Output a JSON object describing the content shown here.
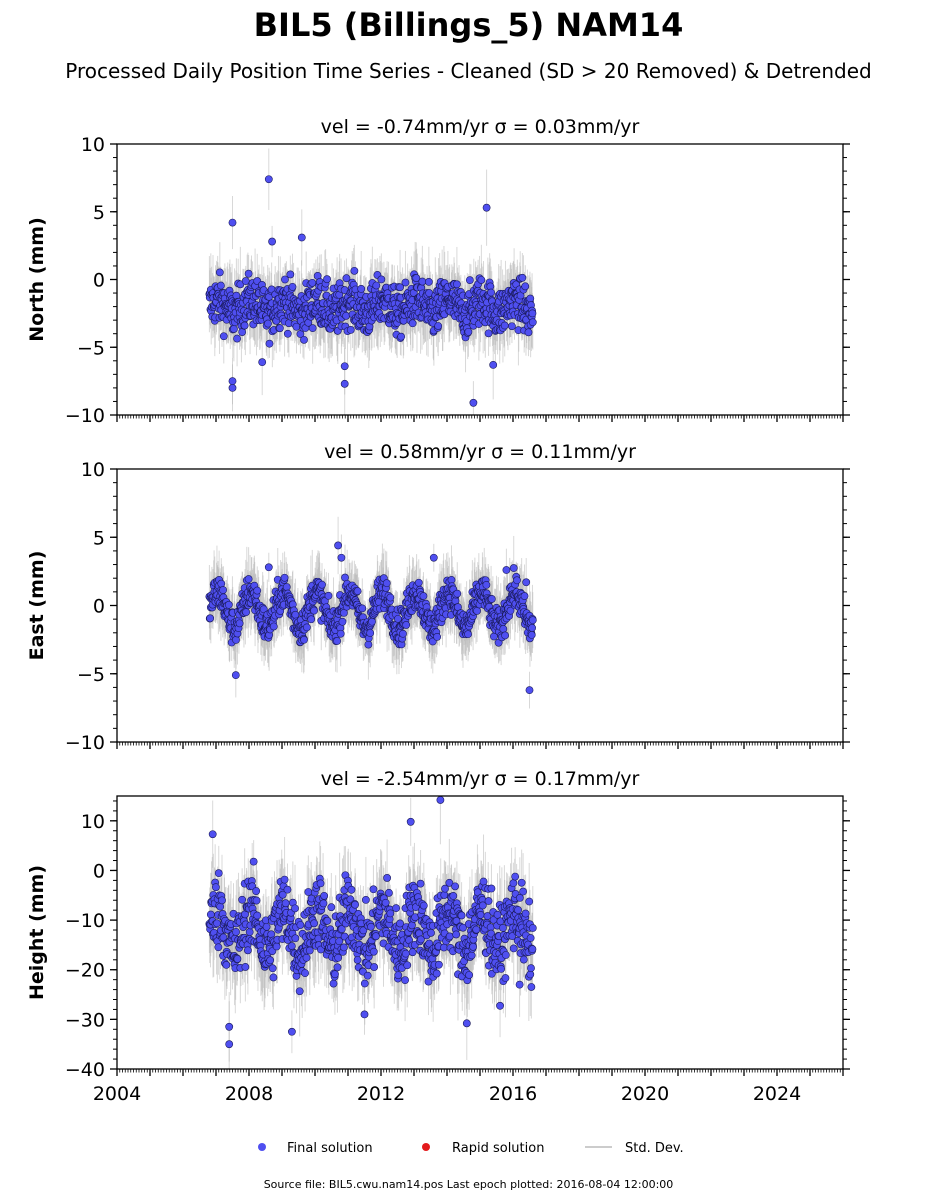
{
  "title": "BIL5 (Billings_5) NAM14",
  "subtitle": "Processed Daily Position Time Series - Cleaned (SD > 20 Removed) & Detrended",
  "footer": "Source file: BIL5.cwu.nam14.pos  Last epoch plotted: 2016-08-04 12:00:00",
  "legend": {
    "items": [
      {
        "label": "Final solution",
        "color": "#4f4ff0",
        "marker": "circle"
      },
      {
        "label": "Rapid solution",
        "color": "#e31a1c",
        "marker": "circle"
      },
      {
        "label": "Std. Dev.",
        "color": "#cccccc",
        "marker": "line"
      }
    ]
  },
  "chart_data": [
    {
      "type": "scatter",
      "panel_title": "vel = -0.74mm/yr   σ = 0.03mm/yr",
      "ylabel": "North (mm)",
      "xlim": [
        2004,
        2026
      ],
      "ylim": [
        -10,
        10
      ],
      "yticks": [
        -10,
        -5,
        0,
        5,
        10
      ],
      "x_range": [
        2006.8,
        2016.6
      ],
      "base": -2.0,
      "spread": 1.3,
      "amp": 0.5,
      "err": 1.5,
      "outliers": [
        [
          2008.6,
          7.4
        ],
        [
          2007.5,
          4.2
        ],
        [
          2015.2,
          5.3
        ],
        [
          2009.6,
          3.1
        ],
        [
          2008.7,
          2.8
        ],
        [
          2007.5,
          -8.0
        ],
        [
          2007.5,
          -7.5
        ],
        [
          2010.9,
          -7.7
        ],
        [
          2014.8,
          -9.1
        ],
        [
          2010.9,
          -6.4
        ],
        [
          2008.4,
          -6.1
        ],
        [
          2015.4,
          -6.3
        ]
      ],
      "series": [
        {
          "name": "Final solution",
          "color": "#4f4ff0"
        }
      ]
    },
    {
      "type": "scatter",
      "panel_title": "vel = 0.58mm/yr   σ = 0.11mm/yr",
      "ylabel": "East (mm)",
      "xlim": [
        2004,
        2026
      ],
      "ylim": [
        -10,
        10
      ],
      "yticks": [
        -10,
        -5,
        0,
        5,
        10
      ],
      "x_range": [
        2006.8,
        2016.6
      ],
      "base": -0.3,
      "spread": 0.9,
      "amp": 1.3,
      "err": 1.4,
      "outliers": [
        [
          2010.7,
          4.4
        ],
        [
          2010.8,
          3.5
        ],
        [
          2013.6,
          3.5
        ],
        [
          2007.6,
          -5.1
        ],
        [
          2016.5,
          -6.2
        ],
        [
          2016.4,
          1.7
        ],
        [
          2015.8,
          2.6
        ],
        [
          2008.6,
          2.8
        ]
      ],
      "series": [
        {
          "name": "Final solution",
          "color": "#4f4ff0"
        }
      ]
    },
    {
      "type": "scatter",
      "panel_title": "vel = -2.54mm/yr   σ = 0.17mm/yr",
      "ylabel": "Height (mm)",
      "xlim": [
        2004,
        2026
      ],
      "ylim": [
        -40,
        15
      ],
      "yticks": [
        -40,
        -30,
        -20,
        -10,
        0,
        10
      ],
      "xticks": [
        2004,
        2008,
        2012,
        2016,
        2020,
        2024
      ],
      "x_range": [
        2006.8,
        2016.6
      ],
      "base": -12.0,
      "spread": 5.5,
      "amp": 4.0,
      "err": 5.0,
      "outliers": [
        [
          2013.8,
          14.2
        ],
        [
          2012.9,
          9.8
        ],
        [
          2006.9,
          7.3
        ],
        [
          2007.4,
          -35.0
        ],
        [
          2007.4,
          -31.5
        ],
        [
          2009.3,
          -32.5
        ],
        [
          2014.6,
          -30.8
        ],
        [
          2011.5,
          -29.0
        ],
        [
          2016.2,
          -23.0
        ]
      ],
      "series": [
        {
          "name": "Final solution",
          "color": "#4f4ff0"
        }
      ]
    }
  ]
}
